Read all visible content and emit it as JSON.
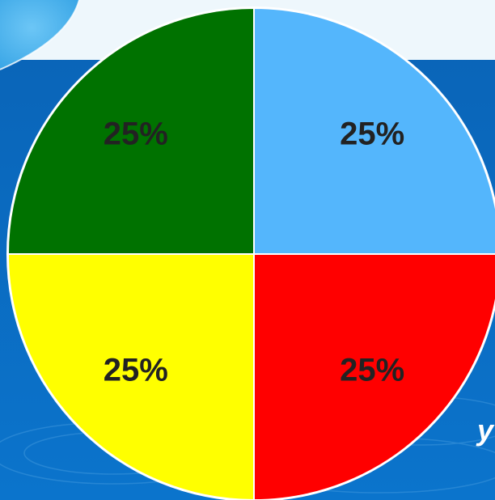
{
  "background": {
    "top_band_color": "#eef7fc",
    "blue_color": "#0a62b4",
    "blob_color": "#4db4ee",
    "edge_text": "y"
  },
  "chart_data": {
    "type": "pie",
    "title": "",
    "categories": [
      "",
      "",
      "",
      ""
    ],
    "values": [
      25,
      25,
      25,
      25
    ],
    "labels": [
      "25%",
      "25%",
      "25%",
      "25%"
    ],
    "colors": [
      "#54b6fc",
      "#ff0000",
      "#ffff00",
      "#007200"
    ],
    "start_angle_deg": -90,
    "direction": "clockwise",
    "slice_border_color": "#ffffff",
    "label_color": "#222222",
    "legend": "none"
  }
}
